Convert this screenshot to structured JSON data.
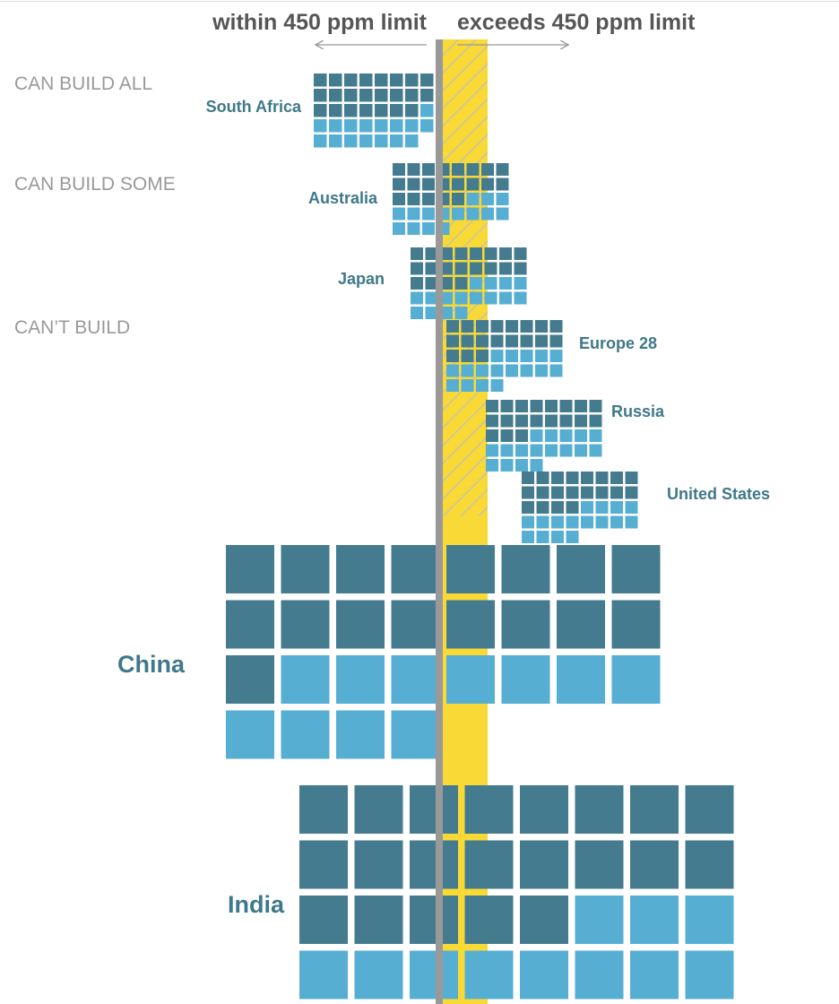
{
  "header": {
    "left_label": "within 450 ppm limit",
    "right_label": "exceeds 450 ppm limit"
  },
  "categories": {
    "can_build_all": "CAN BUILD ALL",
    "can_build_some": "CAN BUILD SOME",
    "cant_build": "CAN’T BUILD"
  },
  "colors": {
    "within": "#457b8f",
    "exceeds": "#57aed3",
    "band": "#f8d936",
    "divider": "#999999",
    "label": "#3f7889",
    "category": "#999999",
    "title": "#555555"
  },
  "chart_data": {
    "type": "waffle",
    "series": [
      {
        "name": "South Africa",
        "category": "CAN BUILD ALL",
        "within": 23,
        "exceeds": 16
      },
      {
        "name": "Australia",
        "category": "CAN BUILD SOME",
        "within": 21,
        "exceeds": 15
      },
      {
        "name": "Japan",
        "category": "CAN BUILD SOME",
        "within": 20,
        "exceeds": 16
      },
      {
        "name": "Europe 28",
        "category": "CAN’T BUILD",
        "within": 19,
        "exceeds": 17
      },
      {
        "name": "Russia",
        "category": "CAN’T BUILD",
        "within": 19,
        "exceeds": 17
      },
      {
        "name": "United States",
        "category": "CAN’T BUILD",
        "within": 20,
        "exceeds": 16
      },
      {
        "name": "China",
        "category": "CAN’T BUILD",
        "within": 17,
        "exceeds": 11
      },
      {
        "name": "India",
        "category": "CAN’T BUILD",
        "within": 21,
        "exceeds": 12
      }
    ]
  }
}
